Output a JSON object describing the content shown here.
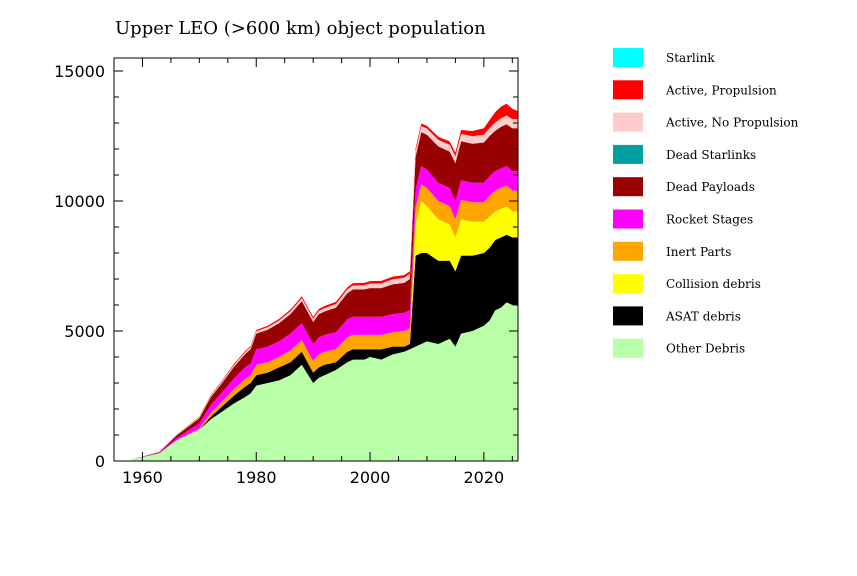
{
  "chart_data": {
    "type": "area",
    "title": "Upper LEO (>600 km) object population",
    "xlabel": "",
    "ylabel": "",
    "xlim": [
      1955,
      2026
    ],
    "ylim": [
      0,
      15500
    ],
    "x_ticks": [
      1960,
      1980,
      2000,
      2020
    ],
    "y_ticks": [
      0,
      5000,
      10000,
      15000
    ],
    "legend_position": "right",
    "x": [
      1958,
      1963,
      1966,
      1970,
      1972,
      1974,
      1976,
      1978,
      1979,
      1980,
      1982,
      1984,
      1986,
      1987,
      1988,
      1990,
      1991,
      1992,
      1994,
      1996,
      1997,
      1999,
      2000,
      2002,
      2004,
      2006,
      2007,
      2008,
      2009,
      2010,
      2012,
      2014,
      2015,
      2016,
      2018,
      2020,
      2021,
      2022,
      2023,
      2024,
      2025,
      2026
    ],
    "series": [
      {
        "name": "Other Debris",
        "color": "#b8ffa8",
        "values": [
          50,
          300,
          800,
          1200,
          1600,
          1900,
          2200,
          2450,
          2600,
          2900,
          3000,
          3100,
          3300,
          3500,
          3700,
          3000,
          3200,
          3300,
          3500,
          3800,
          3900,
          3900,
          4000,
          3900,
          4100,
          4200,
          4300,
          4400,
          4500,
          4600,
          4500,
          4700,
          4400,
          4900,
          5000,
          5200,
          5400,
          5800,
          5900,
          6100,
          6000,
          6000
        ]
      },
      {
        "name": "ASAT debris",
        "color": "#000000",
        "values": [
          0,
          0,
          0,
          0,
          100,
          200,
          300,
          400,
          400,
          400,
          400,
          500,
          500,
          500,
          500,
          400,
          400,
          400,
          300,
          400,
          400,
          400,
          300,
          400,
          300,
          200,
          200,
          3500,
          3500,
          3400,
          3200,
          3000,
          2900,
          3000,
          2900,
          2800,
          2800,
          2700,
          2700,
          2600,
          2600,
          2600
        ]
      },
      {
        "name": "Collision debris",
        "color": "#ffff00",
        "values": [
          0,
          0,
          0,
          0,
          0,
          0,
          0,
          0,
          0,
          0,
          0,
          0,
          0,
          0,
          0,
          0,
          0,
          0,
          0,
          0,
          0,
          0,
          0,
          0,
          0,
          0,
          0,
          1200,
          2000,
          1800,
          1600,
          1400,
          1300,
          1400,
          1300,
          1200,
          1200,
          1100,
          1100,
          1100,
          1000,
          1000
        ]
      },
      {
        "name": "Inert Parts",
        "color": "#ffa500",
        "values": [
          0,
          0,
          0,
          50,
          150,
          200,
          250,
          300,
          300,
          400,
          400,
          400,
          450,
          450,
          450,
          450,
          500,
          500,
          500,
          550,
          550,
          550,
          550,
          550,
          550,
          600,
          600,
          650,
          650,
          700,
          700,
          700,
          700,
          750,
          750,
          750,
          800,
          800,
          800,
          800,
          800,
          800
        ]
      },
      {
        "name": "Rocket Stages",
        "color": "#ff00ff",
        "values": [
          0,
          30,
          80,
          200,
          300,
          350,
          400,
          450,
          450,
          600,
          600,
          600,
          650,
          650,
          650,
          650,
          650,
          650,
          650,
          700,
          700,
          700,
          700,
          700,
          700,
          700,
          700,
          700,
          700,
          700,
          700,
          700,
          700,
          750,
          750,
          750,
          750,
          750,
          750,
          750,
          750,
          750
        ]
      },
      {
        "name": "Dead Payloads",
        "color": "#990000",
        "values": [
          0,
          20,
          100,
          200,
          300,
          350,
          450,
          500,
          550,
          600,
          650,
          700,
          750,
          800,
          850,
          850,
          900,
          900,
          950,
          1000,
          1050,
          1050,
          1100,
          1100,
          1150,
          1150,
          1200,
          1250,
          1300,
          1350,
          1400,
          1400,
          1450,
          1500,
          1500,
          1550,
          1550,
          1550,
          1600,
          1600,
          1650,
          1650
        ]
      },
      {
        "name": "Dead Starlinks",
        "color": "#00a0a0",
        "values": [
          0,
          0,
          0,
          0,
          0,
          0,
          0,
          0,
          0,
          0,
          0,
          0,
          0,
          0,
          0,
          0,
          0,
          0,
          0,
          0,
          0,
          0,
          0,
          0,
          0,
          0,
          0,
          0,
          0,
          0,
          0,
          0,
          0,
          0,
          0,
          0,
          0,
          0,
          0,
          0,
          0,
          0
        ]
      },
      {
        "name": "Active, No Propulsion",
        "color": "#ffcccc",
        "values": [
          0,
          10,
          20,
          40,
          50,
          60,
          70,
          80,
          80,
          90,
          100,
          100,
          110,
          110,
          120,
          120,
          130,
          130,
          140,
          150,
          150,
          160,
          170,
          180,
          190,
          200,
          200,
          220,
          230,
          240,
          250,
          260,
          270,
          280,
          290,
          300,
          310,
          320,
          330,
          340,
          350,
          350
        ]
      },
      {
        "name": "Active, Propulsion",
        "color": "#ff0000",
        "values": [
          0,
          5,
          10,
          20,
          30,
          30,
          40,
          40,
          40,
          50,
          50,
          60,
          60,
          60,
          70,
          70,
          70,
          80,
          80,
          80,
          90,
          90,
          100,
          100,
          100,
          100,
          100,
          100,
          100,
          100,
          120,
          130,
          140,
          150,
          200,
          250,
          300,
          400,
          450,
          450,
          400,
          300
        ]
      },
      {
        "name": "Starlink",
        "color": "#00ffff",
        "values": [
          0,
          0,
          0,
          0,
          0,
          0,
          0,
          0,
          0,
          0,
          0,
          0,
          0,
          0,
          0,
          0,
          0,
          0,
          0,
          0,
          0,
          0,
          0,
          0,
          0,
          0,
          0,
          0,
          0,
          0,
          0,
          0,
          0,
          0,
          0,
          0,
          0,
          0,
          0,
          0,
          0,
          0
        ]
      }
    ]
  }
}
